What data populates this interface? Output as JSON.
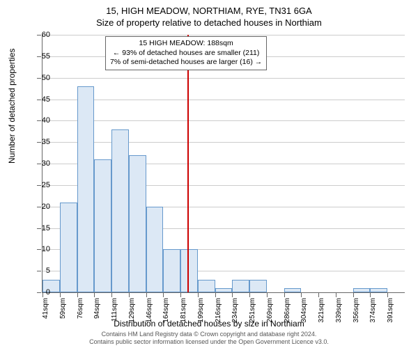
{
  "chart": {
    "type": "histogram",
    "title": "15, HIGH MEADOW, NORTHIAM, RYE, TN31 6GA",
    "subtitle": "Size of property relative to detached houses in Northiam",
    "y_axis_title": "Number of detached properties",
    "x_axis_title": "Distribution of detached houses by size in Northiam",
    "ylim": [
      0,
      60
    ],
    "ytick_step": 5,
    "bar_fill": "#dce8f5",
    "bar_stroke": "#6699cc",
    "grid_color": "#cccccc",
    "ref_line_color": "#cc0000",
    "ref_line_x_index": 8.4,
    "x_categories": [
      "41sqm",
      "59sqm",
      "76sqm",
      "94sqm",
      "111sqm",
      "129sqm",
      "146sqm",
      "164sqm",
      "181sqm",
      "199sqm",
      "216sqm",
      "234sqm",
      "251sqm",
      "269sqm",
      "286sqm",
      "304sqm",
      "321sqm",
      "339sqm",
      "356sqm",
      "374sqm",
      "391sqm"
    ],
    "bar_values": [
      3,
      21,
      48,
      31,
      38,
      32,
      20,
      10,
      10,
      3,
      1,
      3,
      3,
      0,
      1,
      0,
      0,
      0,
      1,
      1
    ],
    "annotation": {
      "line1": "15 HIGH MEADOW: 188sqm",
      "line2": "← 93% of detached houses are smaller (211)",
      "line3": "7% of semi-detached houses are larger (16) →"
    },
    "footer_line1": "Contains HM Land Registry data © Crown copyright and database right 2024.",
    "footer_line2": "Contains public sector information licensed under the Open Government Licence v3.0."
  }
}
